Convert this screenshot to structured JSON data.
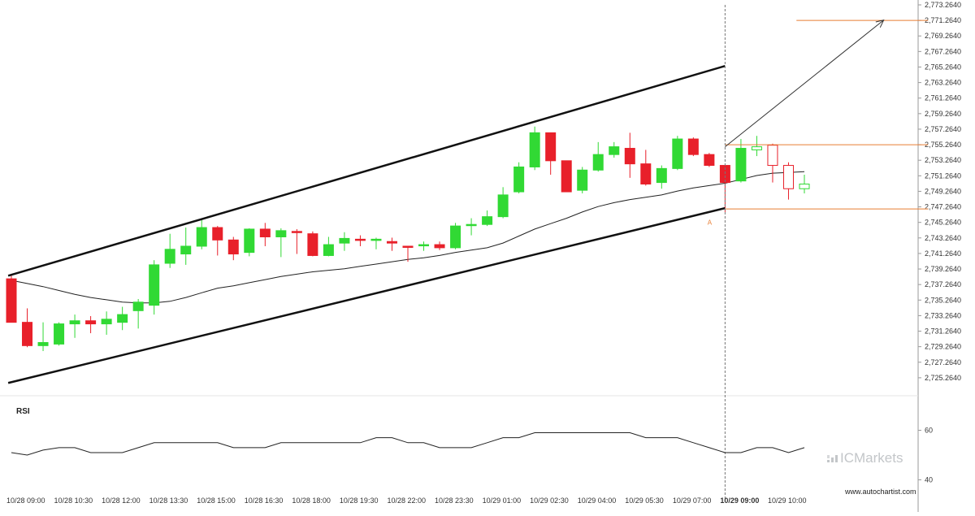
{
  "chart_data": {
    "type": "candlestick",
    "price_axis": {
      "min": 2723.264,
      "max": 2773.264,
      "tick_step": 2,
      "tick_labels": [
        "2,773.2640",
        "2,771.2640",
        "2,769.2640",
        "2,767.2640",
        "2,765.2640",
        "2,763.2640",
        "2,761.2640",
        "2,759.2640",
        "2,757.2640",
        "2,755.2640",
        "2,753.2640",
        "2,751.2640",
        "2,749.2640",
        "2,747.2640",
        "2,745.2640",
        "2,743.2640",
        "2,741.2640",
        "2,739.2640",
        "2,737.2640",
        "2,735.2640",
        "2,733.2640",
        "2,731.2640",
        "2,729.2640",
        "2,727.2640",
        "2,725.2640"
      ]
    },
    "time_axis": {
      "labels": [
        {
          "i": 0,
          "text": "10/28 09:00"
        },
        {
          "i": 3,
          "text": "10/28 10:30"
        },
        {
          "i": 6,
          "text": "10/28 12:00"
        },
        {
          "i": 9,
          "text": "10/28 13:30"
        },
        {
          "i": 12,
          "text": "10/28 15:00"
        },
        {
          "i": 15,
          "text": "10/28 16:30"
        },
        {
          "i": 18,
          "text": "10/28 18:00"
        },
        {
          "i": 21,
          "text": "10/28 19:30"
        },
        {
          "i": 24,
          "text": "10/28 22:00"
        },
        {
          "i": 27,
          "text": "10/28 23:30"
        },
        {
          "i": 30,
          "text": "10/29 01:00"
        },
        {
          "i": 33,
          "text": "10/29 02:30"
        },
        {
          "i": 36,
          "text": "10/29 04:00"
        },
        {
          "i": 39,
          "text": "10/29 05:30"
        },
        {
          "i": 42,
          "text": "10/29 07:00"
        },
        {
          "i": 45,
          "text": "10/29 09:00",
          "bold": true
        },
        {
          "i": 48,
          "text": "10/29 10:00"
        }
      ]
    },
    "candles": [
      {
        "o": 2738.0,
        "h": 2738.6,
        "l": 2732.4,
        "c": 2732.4
      },
      {
        "o": 2732.4,
        "h": 2734.2,
        "l": 2729.2,
        "c": 2729.4
      },
      {
        "o": 2729.4,
        "h": 2732.4,
        "l": 2728.7,
        "c": 2729.8
      },
      {
        "o": 2729.6,
        "h": 2732.4,
        "l": 2729.4,
        "c": 2732.2
      },
      {
        "o": 2732.2,
        "h": 2733.4,
        "l": 2730.4,
        "c": 2732.6
      },
      {
        "o": 2732.6,
        "h": 2733.2,
        "l": 2731.0,
        "c": 2732.2
      },
      {
        "o": 2732.2,
        "h": 2733.8,
        "l": 2730.8,
        "c": 2732.8
      },
      {
        "o": 2732.4,
        "h": 2734.4,
        "l": 2731.4,
        "c": 2733.4
      },
      {
        "o": 2733.9,
        "h": 2735.4,
        "l": 2731.6,
        "c": 2735.0
      },
      {
        "o": 2734.6,
        "h": 2740.4,
        "l": 2733.4,
        "c": 2739.8
      },
      {
        "o": 2740.0,
        "h": 2743.8,
        "l": 2739.4,
        "c": 2741.8
      },
      {
        "o": 2741.2,
        "h": 2744.6,
        "l": 2739.8,
        "c": 2742.2
      },
      {
        "o": 2742.2,
        "h": 2745.8,
        "l": 2741.8,
        "c": 2744.6
      },
      {
        "o": 2744.6,
        "h": 2744.8,
        "l": 2741.0,
        "c": 2743.0
      },
      {
        "o": 2743.0,
        "h": 2743.4,
        "l": 2740.4,
        "c": 2741.2
      },
      {
        "o": 2741.4,
        "h": 2744.5,
        "l": 2740.9,
        "c": 2744.4
      },
      {
        "o": 2744.4,
        "h": 2745.2,
        "l": 2742.2,
        "c": 2743.4
      },
      {
        "o": 2743.4,
        "h": 2744.5,
        "l": 2740.8,
        "c": 2744.2
      },
      {
        "o": 2744.1,
        "h": 2744.4,
        "l": 2741.2,
        "c": 2744.0
      },
      {
        "o": 2743.8,
        "h": 2744.1,
        "l": 2740.9,
        "c": 2741.0
      },
      {
        "o": 2741.0,
        "h": 2743.4,
        "l": 2740.9,
        "c": 2742.4
      },
      {
        "o": 2742.6,
        "h": 2744.0,
        "l": 2741.6,
        "c": 2743.2
      },
      {
        "o": 2743.1,
        "h": 2743.6,
        "l": 2742.2,
        "c": 2743.0
      },
      {
        "o": 2743.0,
        "h": 2743.3,
        "l": 2741.8,
        "c": 2743.1
      },
      {
        "o": 2742.8,
        "h": 2743.3,
        "l": 2741.6,
        "c": 2742.6
      },
      {
        "o": 2742.2,
        "h": 2742.2,
        "l": 2740.2,
        "c": 2742.1
      },
      {
        "o": 2742.3,
        "h": 2742.8,
        "l": 2741.6,
        "c": 2742.4
      },
      {
        "o": 2742.4,
        "h": 2742.8,
        "l": 2741.7,
        "c": 2742.0
      },
      {
        "o": 2742.0,
        "h": 2745.2,
        "l": 2741.8,
        "c": 2744.8
      },
      {
        "o": 2744.9,
        "h": 2745.8,
        "l": 2743.6,
        "c": 2745.0
      },
      {
        "o": 2745.0,
        "h": 2746.8,
        "l": 2744.8,
        "c": 2746.0
      },
      {
        "o": 2746.0,
        "h": 2749.8,
        "l": 2745.8,
        "c": 2748.8
      },
      {
        "o": 2749.2,
        "h": 2753.0,
        "l": 2749.0,
        "c": 2752.4
      },
      {
        "o": 2752.4,
        "h": 2757.6,
        "l": 2752.0,
        "c": 2756.8
      },
      {
        "o": 2756.8,
        "h": 2756.8,
        "l": 2751.4,
        "c": 2753.2
      },
      {
        "o": 2753.2,
        "h": 2753.2,
        "l": 2749.2,
        "c": 2749.2
      },
      {
        "o": 2749.4,
        "h": 2752.4,
        "l": 2749.0,
        "c": 2752.0
      },
      {
        "o": 2752.0,
        "h": 2755.6,
        "l": 2751.8,
        "c": 2754.0
      },
      {
        "o": 2754.0,
        "h": 2755.6,
        "l": 2753.6,
        "c": 2755.0
      },
      {
        "o": 2754.8,
        "h": 2756.8,
        "l": 2751.0,
        "c": 2752.8
      },
      {
        "o": 2752.8,
        "h": 2754.6,
        "l": 2750.0,
        "c": 2750.2
      },
      {
        "o": 2750.4,
        "h": 2752.6,
        "l": 2749.6,
        "c": 2752.2
      },
      {
        "o": 2752.2,
        "h": 2756.4,
        "l": 2752.0,
        "c": 2756.0
      },
      {
        "o": 2756.0,
        "h": 2756.2,
        "l": 2753.8,
        "c": 2754.0
      },
      {
        "o": 2754.0,
        "h": 2754.2,
        "l": 2752.4,
        "c": 2752.6
      },
      {
        "o": 2752.6,
        "h": 2752.6,
        "l": 2746.6,
        "c": 2750.4
      },
      {
        "o": 2750.6,
        "h": 2756.0,
        "l": 2750.4,
        "c": 2754.8
      },
      {
        "o": 2754.6,
        "h": 2756.4,
        "l": 2753.8,
        "c": 2755.0,
        "hollow": true
      },
      {
        "o": 2755.2,
        "h": 2755.4,
        "l": 2750.4,
        "c": 2752.6,
        "hollow": true
      },
      {
        "o": 2752.6,
        "h": 2753.0,
        "l": 2748.2,
        "c": 2749.6,
        "hollow": true
      },
      {
        "o": 2749.6,
        "h": 2751.4,
        "l": 2749.0,
        "c": 2750.2,
        "hollow": true
      }
    ],
    "moving_average": [
      2737.8,
      2737.4,
      2737.0,
      2736.5,
      2736.0,
      2735.6,
      2735.3,
      2735.0,
      2734.9,
      2734.9,
      2735.1,
      2735.6,
      2736.2,
      2736.8,
      2737.1,
      2737.5,
      2737.9,
      2738.3,
      2738.6,
      2738.9,
      2739.1,
      2739.3,
      2739.6,
      2739.9,
      2740.2,
      2740.5,
      2740.7,
      2741.0,
      2741.4,
      2741.7,
      2742.0,
      2742.6,
      2743.5,
      2744.4,
      2745.1,
      2745.8,
      2746.6,
      2747.3,
      2747.8,
      2748.2,
      2748.5,
      2748.8,
      2749.3,
      2749.7,
      2750.0,
      2750.3,
      2750.8,
      2751.3,
      2751.6,
      2751.7,
      2751.8
    ],
    "channel": {
      "upper": [
        {
          "i": -0.2,
          "p": 2738.4
        },
        {
          "i": 45.0,
          "p": 2765.4
        }
      ],
      "lower": [
        {
          "i": -0.2,
          "p": 2724.6
        },
        {
          "i": 45.0,
          "p": 2747.1
        }
      ]
    },
    "forecast_arrow": {
      "from": {
        "i": 45.0,
        "p": 2755.0
      },
      "to": {
        "i": 55.0,
        "p": 2771.3
      }
    },
    "levels": [
      {
        "p": 2771.264,
        "from_i": 49.5,
        "to_i": 57.8
      },
      {
        "p": 2755.264,
        "from_i": 45.0,
        "to_i": 57.8
      },
      {
        "p": 2747.0,
        "from_i": 45.0,
        "to_i": 57.8
      }
    ],
    "breakout_index": 45,
    "point_marker": {
      "i": 45,
      "p": 2746.0,
      "text": "A"
    },
    "rsi": {
      "title": "RSI",
      "min": 30,
      "max": 70,
      "tick_values": [
        60,
        40
      ],
      "tick_labels": [
        "60",
        "40"
      ],
      "values": [
        51,
        50,
        52,
        53,
        53,
        51,
        51,
        51,
        53,
        55,
        55,
        55,
        55,
        55,
        53,
        53,
        53,
        55,
        55,
        55,
        55,
        55,
        55,
        57,
        57,
        55,
        55,
        53,
        53,
        53,
        55,
        57,
        57,
        59,
        59,
        59,
        59,
        59,
        59,
        59,
        57,
        57,
        57,
        55,
        53,
        51,
        51,
        53,
        53,
        51,
        53
      ]
    },
    "colors": {
      "bull": "#31d934",
      "bear": "#e8202a",
      "level": "#e87d33",
      "trend": "#111111",
      "ma": "#222222"
    }
  },
  "branding": {
    "site_url": "www.autochartist.com",
    "brand_name": "ICMarkets"
  }
}
